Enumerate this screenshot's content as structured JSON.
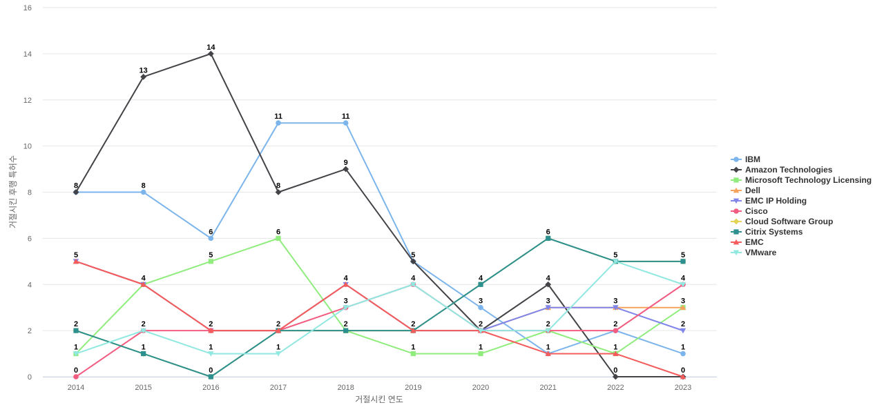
{
  "chart_data": {
    "type": "line",
    "title": "",
    "xlabel": "거절시킨 연도",
    "ylabel": "거절시킨 후행 특허수",
    "ylim": [
      0,
      16
    ],
    "yticks": [
      0,
      2,
      4,
      6,
      8,
      10,
      12,
      14,
      16
    ],
    "categories": [
      "2014",
      "2015",
      "2016",
      "2017",
      "2018",
      "2019",
      "2020",
      "2021",
      "2022",
      "2023"
    ],
    "legend_position": "right",
    "series": [
      {
        "name": "IBM",
        "color": "#7cb5ec",
        "marker": "circle",
        "values": [
          8,
          8,
          6,
          11,
          11,
          5,
          3,
          1,
          2,
          1
        ]
      },
      {
        "name": "Amazon Technologies",
        "color": "#434348",
        "marker": "diamond",
        "values": [
          8,
          13,
          14,
          8,
          9,
          5,
          2,
          4,
          0,
          0
        ]
      },
      {
        "name": "Microsoft Technology Licensing",
        "color": "#90ed7d",
        "marker": "square",
        "values": [
          1,
          4,
          5,
          6,
          2,
          1,
          1,
          2,
          1,
          3
        ]
      },
      {
        "name": "Dell",
        "color": "#f7a35c",
        "marker": "triangle",
        "values": [
          5,
          4,
          2,
          2,
          2,
          2,
          2,
          3,
          3,
          3
        ]
      },
      {
        "name": "EMC IP Holding",
        "color": "#8085e9",
        "marker": "triangle-down",
        "values": [
          5,
          4,
          2,
          2,
          4,
          2,
          2,
          3,
          3,
          2
        ]
      },
      {
        "name": "Cisco",
        "color": "#f15c80",
        "marker": "circle",
        "values": [
          0,
          2,
          2,
          2,
          3,
          4,
          2,
          2,
          2,
          4
        ]
      },
      {
        "name": "Cloud Software Group",
        "color": "#e4d354",
        "marker": "diamond",
        "values": [
          2,
          1,
          0,
          2,
          2,
          2,
          4,
          6,
          5,
          5
        ]
      },
      {
        "name": "Citrix Systems",
        "color": "#2b908f",
        "marker": "square",
        "values": [
          2,
          1,
          0,
          2,
          2,
          2,
          4,
          6,
          5,
          5
        ]
      },
      {
        "name": "EMC",
        "color": "#f45b5b",
        "marker": "triangle",
        "values": [
          5,
          4,
          2,
          2,
          4,
          2,
          2,
          1,
          1,
          0
        ]
      },
      {
        "name": "VMware",
        "color": "#91e8e1",
        "marker": "triangle-down",
        "values": [
          1,
          2,
          1,
          1,
          3,
          4,
          2,
          2,
          5,
          4
        ]
      }
    ],
    "data_labels": [
      {
        "category": "2014",
        "value": 8,
        "text": "8"
      },
      {
        "category": "2014",
        "value": 5,
        "text": "5"
      },
      {
        "category": "2014",
        "value": 2,
        "text": "2"
      },
      {
        "category": "2014",
        "value": 1,
        "text": "1"
      },
      {
        "category": "2014",
        "value": 0,
        "text": "0"
      },
      {
        "category": "2015",
        "value": 13,
        "text": "13"
      },
      {
        "category": "2015",
        "value": 8,
        "text": "8"
      },
      {
        "category": "2015",
        "value": 4,
        "text": "4"
      },
      {
        "category": "2015",
        "value": 2,
        "text": "2"
      },
      {
        "category": "2015",
        "value": 1,
        "text": "1"
      },
      {
        "category": "2016",
        "value": 14,
        "text": "14"
      },
      {
        "category": "2016",
        "value": 6,
        "text": "6"
      },
      {
        "category": "2016",
        "value": 5,
        "text": "5"
      },
      {
        "category": "2016",
        "value": 2,
        "text": "2"
      },
      {
        "category": "2016",
        "value": 1,
        "text": "1"
      },
      {
        "category": "2016",
        "value": 0,
        "text": "0"
      },
      {
        "category": "2017",
        "value": 11,
        "text": "11"
      },
      {
        "category": "2017",
        "value": 8,
        "text": "8"
      },
      {
        "category": "2017",
        "value": 6,
        "text": "6"
      },
      {
        "category": "2017",
        "value": 2,
        "text": "2"
      },
      {
        "category": "2017",
        "value": 1,
        "text": "1"
      },
      {
        "category": "2018",
        "value": 11,
        "text": "11"
      },
      {
        "category": "2018",
        "value": 9,
        "text": "9"
      },
      {
        "category": "2018",
        "value": 4,
        "text": "4"
      },
      {
        "category": "2018",
        "value": 3,
        "text": "3"
      },
      {
        "category": "2018",
        "value": 2,
        "text": "2"
      },
      {
        "category": "2019",
        "value": 5,
        "text": "5"
      },
      {
        "category": "2019",
        "value": 4,
        "text": "4"
      },
      {
        "category": "2019",
        "value": 2,
        "text": "2"
      },
      {
        "category": "2019",
        "value": 1,
        "text": "1"
      },
      {
        "category": "2020",
        "value": 4,
        "text": "4"
      },
      {
        "category": "2020",
        "value": 3,
        "text": "3"
      },
      {
        "category": "2020",
        "value": 2,
        "text": "2"
      },
      {
        "category": "2020",
        "value": 1,
        "text": "1"
      },
      {
        "category": "2021",
        "value": 6,
        "text": "6"
      },
      {
        "category": "2021",
        "value": 4,
        "text": "4"
      },
      {
        "category": "2021",
        "value": 3,
        "text": "3"
      },
      {
        "category": "2021",
        "value": 2,
        "text": "2"
      },
      {
        "category": "2021",
        "value": 1,
        "text": "1"
      },
      {
        "category": "2022",
        "value": 5,
        "text": "5"
      },
      {
        "category": "2022",
        "value": 3,
        "text": "3"
      },
      {
        "category": "2022",
        "value": 2,
        "text": "2"
      },
      {
        "category": "2022",
        "value": 1,
        "text": "1"
      },
      {
        "category": "2022",
        "value": 0,
        "text": "0"
      },
      {
        "category": "2023",
        "value": 5,
        "text": "5"
      },
      {
        "category": "2023",
        "value": 4,
        "text": "4"
      },
      {
        "category": "2023",
        "value": 3,
        "text": "3"
      },
      {
        "category": "2023",
        "value": 2,
        "text": "2"
      },
      {
        "category": "2023",
        "value": 1,
        "text": "1"
      },
      {
        "category": "2023",
        "value": 0,
        "text": "0"
      }
    ]
  }
}
